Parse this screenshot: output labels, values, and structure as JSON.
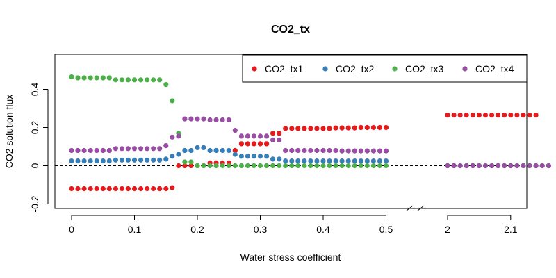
{
  "chart_data": {
    "type": "scatter",
    "title": "CO2_tx",
    "xlabel": "Water stress coefficient",
    "ylabel": "CO2 solution flux",
    "x_break": "0.5 to 2.0 (axis break)",
    "x_tick_labels": [
      "0",
      "0.1",
      "0.2",
      "0.3",
      "0.4",
      "0.5",
      "2",
      "2.1"
    ],
    "y_tick_labels": [
      "-0.2",
      "0",
      "0.2",
      "0.4"
    ],
    "ylim": [
      -0.22,
      0.55
    ],
    "reference_line_y": 0,
    "legend_position": "top-right",
    "grid": false,
    "x": [
      0,
      0.01,
      0.02,
      0.03,
      0.04,
      0.05,
      0.06,
      0.07,
      0.08,
      0.09,
      0.1,
      0.11,
      0.12,
      0.13,
      0.14,
      0.15,
      0.16,
      0.17,
      0.18,
      0.19,
      0.2,
      0.21,
      0.22,
      0.23,
      0.24,
      0.25,
      0.26,
      0.27,
      0.28,
      0.29,
      0.3,
      0.31,
      0.32,
      0.33,
      0.34,
      0.35,
      0.36,
      0.37,
      0.38,
      0.39,
      0.4,
      0.41,
      0.42,
      0.43,
      0.44,
      0.45,
      0.46,
      0.47,
      0.48,
      0.49,
      0.5,
      2.0,
      2.01,
      2.02,
      2.03,
      2.04,
      2.05,
      2.06,
      2.07,
      2.08,
      2.09,
      2.1,
      2.11,
      2.12,
      2.13,
      2.14,
      2.15,
      2.16
    ],
    "series": [
      {
        "name": "CO2_tx1",
        "color": "#E41A1C",
        "values": [
          -0.12,
          -0.12,
          -0.12,
          -0.12,
          -0.12,
          -0.12,
          -0.12,
          -0.12,
          -0.12,
          -0.12,
          -0.12,
          -0.12,
          -0.12,
          -0.12,
          -0.12,
          -0.12,
          -0.115,
          0.0,
          0.0,
          0.0,
          0.0,
          0.0,
          0.015,
          0.015,
          0.015,
          0.015,
          0.08,
          0.115,
          0.115,
          0.115,
          0.115,
          0.115,
          0.17,
          0.17,
          0.195,
          0.195,
          0.195,
          0.195,
          0.195,
          0.195,
          0.195,
          0.195,
          0.198,
          0.198,
          0.198,
          0.198,
          0.2,
          0.2,
          0.2,
          0.2,
          0.2,
          0.265,
          0.265,
          0.265,
          0.265,
          0.265,
          0.265,
          0.265,
          0.265,
          0.265,
          0.265,
          0.265,
          0.265,
          0.265,
          0.265,
          0.265,
          null,
          null
        ]
      },
      {
        "name": "CO2_tx2",
        "color": "#377EB8",
        "values": [
          0.025,
          0.025,
          0.025,
          0.025,
          0.025,
          0.025,
          0.025,
          0.03,
          0.03,
          0.03,
          0.03,
          0.03,
          0.03,
          0.03,
          0.03,
          0.035,
          0.05,
          0.06,
          0.08,
          0.08,
          0.095,
          0.095,
          0.08,
          0.08,
          0.08,
          0.08,
          0.06,
          0.05,
          0.05,
          0.05,
          0.05,
          0.05,
          0.035,
          0.035,
          0.025,
          0.025,
          0.025,
          0.025,
          0.025,
          0.025,
          0.025,
          0.025,
          0.025,
          0.025,
          0.025,
          0.025,
          0.025,
          0.025,
          0.025,
          0.025,
          0.025,
          0.0,
          0.0,
          0.0,
          0.0,
          0.0,
          0.0,
          0.0,
          0.0,
          0.0,
          0.0,
          0.0,
          0.0,
          0.0,
          0.0,
          0.0,
          0.0,
          0.0
        ]
      },
      {
        "name": "CO2_tx3",
        "color": "#4DAF4A",
        "values": [
          0.465,
          0.46,
          0.46,
          0.46,
          0.46,
          0.46,
          0.46,
          0.45,
          0.45,
          0.45,
          0.45,
          0.45,
          0.45,
          0.45,
          0.45,
          0.425,
          0.34,
          0.17,
          0.02,
          0.02,
          0.0,
          0.0,
          0.0,
          0.0,
          0.0,
          0.0,
          0.0,
          0.0,
          0.0,
          0.0,
          0.0,
          0.0,
          0.0,
          0.0,
          0.0,
          0.0,
          0.0,
          0.0,
          0.0,
          0.0,
          0.0,
          0.0,
          0.0,
          0.0,
          0.0,
          0.0,
          0.0,
          0.0,
          0.0,
          0.0,
          0.0,
          0.0,
          0.0,
          0.0,
          0.0,
          0.0,
          0.0,
          0.0,
          0.0,
          0.0,
          0.0,
          0.0,
          0.0,
          0.0,
          0.0,
          0.0,
          0.0,
          0.0
        ]
      },
      {
        "name": "CO2_tx4",
        "color": "#984EA3",
        "values": [
          0.08,
          0.08,
          0.08,
          0.08,
          0.08,
          0.08,
          0.08,
          0.09,
          0.09,
          0.09,
          0.09,
          0.09,
          0.09,
          0.09,
          0.09,
          0.105,
          0.15,
          0.155,
          0.245,
          0.245,
          0.245,
          0.245,
          0.24,
          0.24,
          0.24,
          0.24,
          0.185,
          0.155,
          0.155,
          0.155,
          0.155,
          0.155,
          0.135,
          0.135,
          0.08,
          0.08,
          0.08,
          0.08,
          0.08,
          0.08,
          0.08,
          0.08,
          0.08,
          0.078,
          0.078,
          0.078,
          0.078,
          0.078,
          0.078,
          0.078,
          0.078,
          0.0,
          0.0,
          0.0,
          0.0,
          0.0,
          0.0,
          0.0,
          0.0,
          0.0,
          0.0,
          0.0,
          0.0,
          0.0,
          0.0,
          0.0,
          0.0,
          0.0
        ]
      }
    ]
  }
}
